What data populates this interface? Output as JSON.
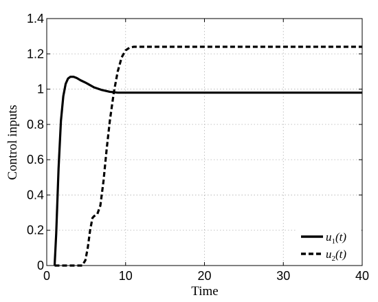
{
  "chart_data": {
    "type": "line",
    "title": "",
    "xlabel": "Time",
    "ylabel": "Control inputs",
    "xlim": [
      0,
      40
    ],
    "ylim": [
      0,
      1.4
    ],
    "xticks": [
      "0",
      "10",
      "20",
      "30",
      "40"
    ],
    "yticks": [
      "0",
      "0.2",
      "0.4",
      "0.6",
      "0.8",
      "1",
      "1.2",
      "1.4"
    ],
    "grid": true,
    "legend_position": "bottom-right",
    "series": [
      {
        "name": "u₁(t)",
        "style": "solid",
        "color": "#000000",
        "x": [
          1.0,
          1.2,
          1.5,
          1.8,
          2.1,
          2.4,
          2.7,
          3.0,
          3.4,
          3.8,
          4.3,
          5.0,
          6.0,
          7.0,
          8.0,
          9.0,
          10.0,
          12.0,
          15.0,
          20.0,
          30.0,
          40.0
        ],
        "y": [
          0.0,
          0.18,
          0.55,
          0.82,
          0.96,
          1.03,
          1.06,
          1.07,
          1.07,
          1.063,
          1.05,
          1.035,
          1.01,
          0.995,
          0.985,
          0.98,
          0.98,
          0.98,
          0.98,
          0.98,
          0.98,
          0.98
        ]
      },
      {
        "name": "u₂(t)",
        "style": "dashed",
        "color": "#000000",
        "x": [
          1.0,
          4.5,
          4.9,
          5.2,
          5.5,
          5.8,
          6.0,
          6.4,
          6.8,
          7.2,
          7.6,
          8.0,
          8.5,
          9.0,
          9.5,
          10.0,
          10.5,
          11.0,
          11.5,
          12.0,
          13.0,
          15.0,
          20.0,
          30.0,
          40.0
        ],
        "y": [
          0.0,
          0.0,
          0.03,
          0.1,
          0.2,
          0.27,
          0.28,
          0.29,
          0.34,
          0.48,
          0.66,
          0.82,
          0.98,
          1.1,
          1.18,
          1.22,
          1.235,
          1.24,
          1.24,
          1.24,
          1.24,
          1.24,
          1.24,
          1.24,
          1.24
        ]
      }
    ]
  },
  "legend": {
    "u1_base": "u",
    "u1_sub": "1",
    "u1_arg": "(t)",
    "u2_base": "u",
    "u2_sub": "2",
    "u2_arg": "(t)"
  }
}
